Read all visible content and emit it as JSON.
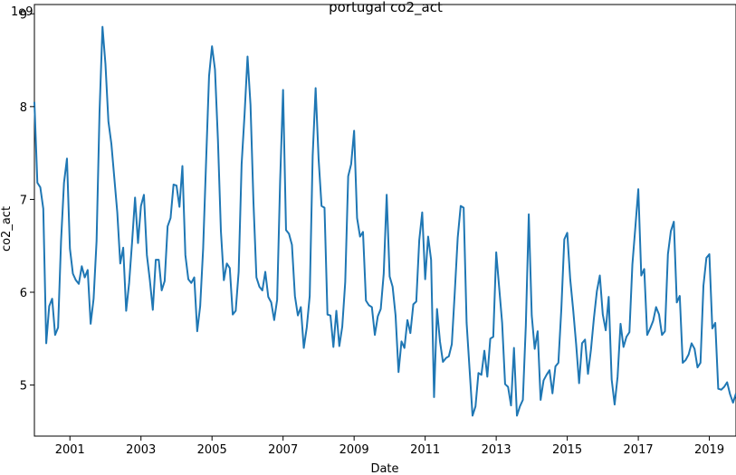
{
  "chart_data": {
    "type": "line",
    "title": "portugal co2_act",
    "xlabel": "Date",
    "ylabel": "co2_act",
    "y_offset_label": "1e9",
    "y_unit_multiplier": 1000000000,
    "xlim": [
      2000.0,
      2019.75
    ],
    "ylim": [
      4.45,
      9.1
    ],
    "x_ticks": [
      2001,
      2003,
      2005,
      2007,
      2009,
      2011,
      2013,
      2015,
      2017,
      2019
    ],
    "x_tick_labels": [
      "2001",
      "2003",
      "2005",
      "2007",
      "2009",
      "2011",
      "2013",
      "2015",
      "2017",
      "2019"
    ],
    "y_ticks": [
      5,
      6,
      7,
      8,
      9
    ],
    "y_tick_labels": [
      "5",
      "6",
      "7",
      "8",
      "9"
    ],
    "grid": false,
    "legend": "none",
    "color": "#1f77b4",
    "series": [
      {
        "x_start": 2000.0,
        "x_step_months": 1,
        "values": [
          8.05,
          7.18,
          7.13,
          6.9,
          5.45,
          5.85,
          5.93,
          5.54,
          5.62,
          6.55,
          7.18,
          7.44,
          6.47,
          6.2,
          6.13,
          6.09,
          6.28,
          6.16,
          6.24,
          5.66,
          5.93,
          6.55,
          7.94,
          8.86,
          8.46,
          7.84,
          7.6,
          7.23,
          6.86,
          6.31,
          6.48,
          5.8,
          6.1,
          6.54,
          7.02,
          6.53,
          6.93,
          7.05,
          6.4,
          6.13,
          5.81,
          6.35,
          6.35,
          6.02,
          6.12,
          6.71,
          6.8,
          7.16,
          7.15,
          6.92,
          7.36,
          6.4,
          6.14,
          6.1,
          6.16,
          5.58,
          5.85,
          6.47,
          7.41,
          8.33,
          8.65,
          8.4,
          7.64,
          6.66,
          6.13,
          6.31,
          6.26,
          5.76,
          5.8,
          6.22,
          7.38,
          7.92,
          8.54,
          8.02,
          6.97,
          6.16,
          6.06,
          6.02,
          6.22,
          5.95,
          5.89,
          5.7,
          5.92,
          7.19,
          8.18,
          6.67,
          6.63,
          6.51,
          5.96,
          5.75,
          5.84,
          5.4,
          5.62,
          5.96,
          7.47,
          8.2,
          7.44,
          6.93,
          6.91,
          5.76,
          5.75,
          5.41,
          5.8,
          5.42,
          5.63,
          6.11,
          7.25,
          7.38,
          7.74,
          6.8,
          6.6,
          6.65,
          5.91,
          5.86,
          5.84,
          5.54,
          5.74,
          5.82,
          6.2,
          7.05,
          6.17,
          6.06,
          5.75,
          5.14,
          5.47,
          5.4,
          5.7,
          5.56,
          5.87,
          5.9,
          6.56,
          6.86,
          6.14,
          6.6,
          6.35,
          4.87,
          5.82,
          5.47,
          5.25,
          5.29,
          5.31,
          5.44,
          6.0,
          6.59,
          6.93,
          6.91,
          5.67,
          5.17,
          4.67,
          4.77,
          5.13,
          5.11,
          5.37,
          5.09,
          5.5,
          5.52,
          6.43,
          6.05,
          5.67,
          5.01,
          4.98,
          4.78,
          5.4,
          4.67,
          4.77,
          4.84,
          5.64,
          6.84,
          5.75,
          5.39,
          5.58,
          4.84,
          5.05,
          5.11,
          5.16,
          4.91,
          5.2,
          5.24,
          5.82,
          6.57,
          6.64,
          6.14,
          5.81,
          5.44,
          5.02,
          5.45,
          5.49,
          5.12,
          5.38,
          5.72,
          6.01,
          6.18,
          5.76,
          5.59,
          5.95,
          5.06,
          4.79,
          5.09,
          5.66,
          5.41,
          5.52,
          5.57,
          6.3,
          6.7,
          7.11,
          6.18,
          6.25,
          5.54,
          5.61,
          5.69,
          5.84,
          5.76,
          5.54,
          5.58,
          6.41,
          6.66,
          6.76,
          5.89,
          5.96,
          5.24,
          5.27,
          5.33,
          5.45,
          5.39,
          5.19,
          5.24,
          6.07,
          6.37,
          6.41,
          5.61,
          5.67,
          4.96,
          4.95,
          4.98,
          5.03,
          4.9,
          4.81,
          4.91
        ]
      }
    ]
  }
}
